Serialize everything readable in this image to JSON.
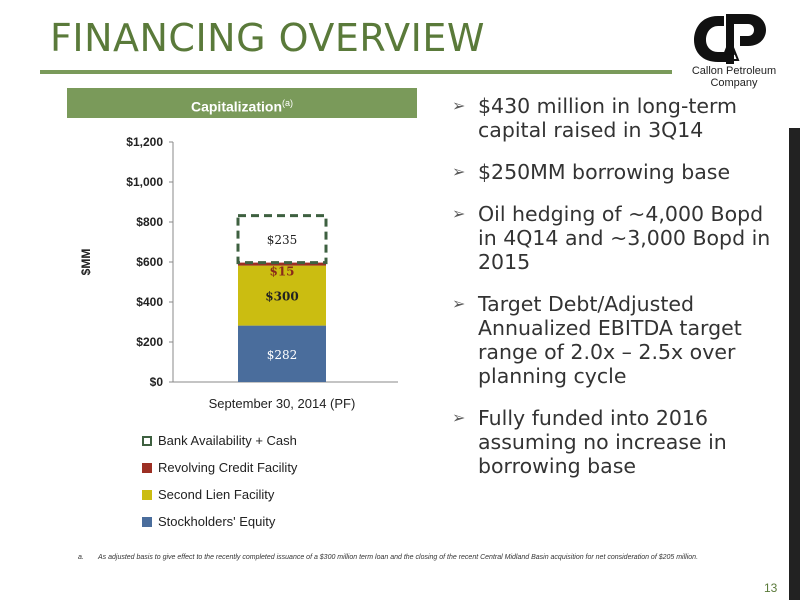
{
  "slide": {
    "title": "FINANCING OVERVIEW",
    "page_number": "13",
    "colors": {
      "accent": "#7a9a5a",
      "title": "#5a7a3a"
    }
  },
  "logo": {
    "line1": "Callon Petroleum",
    "line2": "Company"
  },
  "capitalization": {
    "header": "Capitalization",
    "header_note": "(a)"
  },
  "chart_data": {
    "type": "bar",
    "stacked": true,
    "categories": [
      "September 30, 2014 (PF)"
    ],
    "ylabel": "$MM",
    "ylim": [
      0,
      1200
    ],
    "yticks": [
      0,
      200,
      400,
      600,
      800,
      1000,
      1200
    ],
    "ytick_labels": [
      "$0",
      "$200",
      "$400",
      "$600",
      "$800",
      "$1,000",
      "$1,200"
    ],
    "legend_position": "bottom",
    "series": [
      {
        "name": "Stockholders' Equity",
        "values": [
          282
        ],
        "label": "$282",
        "color": "#4a6d9c"
      },
      {
        "name": "Second Lien Facility",
        "values": [
          300
        ],
        "label": "$300",
        "color": "#cbbd11"
      },
      {
        "name": "Revolving Credit Facility",
        "values": [
          15
        ],
        "label": "$15",
        "color": "#9c2f24"
      },
      {
        "name": "Bank Availability + Cash",
        "values": [
          235
        ],
        "label": "$235",
        "color": "#3e6040",
        "style": "dashed"
      }
    ],
    "legend_order": [
      "Bank Availability + Cash",
      "Revolving Credit Facility",
      "Second Lien Facility",
      "Stockholders' Equity"
    ]
  },
  "bullets": [
    "$430 million in long-term capital raised in 3Q14",
    "$250MM borrowing base",
    "Oil hedging of ~4,000 Bopd in 4Q14 and ~3,000 Bopd in 2015",
    "Target Debt/Adjusted Annualized EBITDA target range of 2.0x – 2.5x over planning cycle",
    "Fully funded into 2016 assuming no increase in borrowing base"
  ],
  "footnote": {
    "marker": "a.",
    "text": "As adjusted basis to give effect to the recently completed issuance of a $300 million term loan and the closing of the recent Central Midland Basin acquisition for net consideration of $205 million."
  }
}
